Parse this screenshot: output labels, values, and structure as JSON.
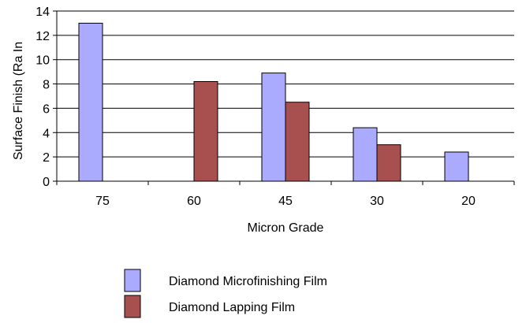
{
  "chart_data": {
    "type": "bar",
    "title": "",
    "xlabel": "Micron Grade",
    "ylabel": "Surface Finish (Ra In",
    "categories": [
      "75",
      "60",
      "45",
      "30",
      "20"
    ],
    "ylim": [
      0,
      14
    ],
    "yticks": [
      0,
      2,
      4,
      6,
      8,
      10,
      12,
      14
    ],
    "grid": true,
    "legend_position": "bottom",
    "series": [
      {
        "name": "Diamond Microfinishing Film",
        "color": "#aaaaff",
        "values": [
          13,
          null,
          8.9,
          4.4,
          2.4
        ]
      },
      {
        "name": "Diamond Lapping Film",
        "color": "#a85050",
        "values": [
          null,
          8.2,
          6.5,
          3.0,
          null
        ]
      }
    ]
  }
}
